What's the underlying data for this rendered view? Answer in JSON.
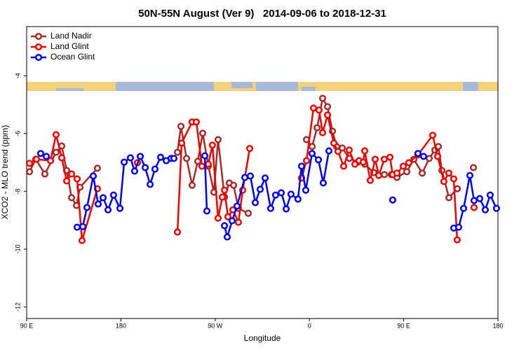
{
  "chart_data": {
    "type": "line",
    "title": "50N-55N August (Ver 9)   2014-09-06 to 2018-12-31",
    "xlabel": "Longitude",
    "ylabel": "XCO2 - MLO trend (ppm)",
    "xlim": [
      90,
      540
    ],
    "ylim": [
      -12.4,
      -2.3
    ],
    "xticks": [
      {
        "value": 90,
        "label": "90 E"
      },
      180,
      {
        "value": 270,
        "label": "90 W"
      },
      {
        "value": 360,
        "label": "0"
      },
      {
        "value": 450,
        "label": "90 E"
      },
      {
        "value": 540,
        "label": "180"
      }
    ],
    "yticks": [
      -4,
      -6,
      -8,
      -10,
      -12
    ],
    "legend": "upper left",
    "series": [
      {
        "name": "Land Nadir",
        "color": "#a52a2a",
        "x": [
          92.7,
          98.7,
          107.4,
          118.1,
          123.5,
          128.2,
          132.9,
          137.6,
          140.9,
          157.6,
          null,
          234,
          237.3,
          242.7,
          248,
          253.4,
          258.1,
          263.5,
          268.8,
          272.8,
          278.9,
          283.5,
          287.6,
          292.2,
          301.6,
          null,
          357.2,
          362.6,
          367.3,
          372.6,
          377.3,
          382,
          386,
          391.4,
          398.1,
          406.1,
          412.8,
          421.5,
          431.6,
          438.2,
          443.6,
          453,
          459.7,
          467.7,
          474.4,
          479.8,
          483.1,
          486.5,
          493.2,
          501.2,
          null,
          516.6
        ],
        "values": [
          -7.32,
          -6.89,
          -7.4,
          -6.65,
          -6.43,
          -7.28,
          -8.22,
          -8.49,
          -7.86,
          -7.2,
          null,
          -6.65,
          -5.75,
          -6.86,
          -7.79,
          -6.96,
          -5.99,
          -7.13,
          -8.03,
          -6.21,
          -8.2,
          -7.71,
          -7.79,
          -8.59,
          -8.76,
          null,
          -6.21,
          -6.45,
          -5.8,
          -4.78,
          -5.07,
          -5.92,
          -6.45,
          -6.5,
          -6.86,
          -6.99,
          -7.06,
          -7.35,
          -7.42,
          -7.42,
          -7.52,
          -7.32,
          -6.89,
          -7.37,
          -6.86,
          -6.57,
          -6.45,
          -7.28,
          -8.22,
          -7.91,
          null,
          -7.18
        ]
      },
      {
        "name": "Land Glint",
        "color": "#f00000",
        "x": [
          92.7,
          99.4,
          112.8,
          118.1,
          123.5,
          128.2,
          132.9,
          138.2,
          142.9,
          157.6,
          null,
          195.8,
          null,
          234,
          238,
          248,
          252,
          257.4,
          263.4,
          267.4,
          272.8,
          276.8,
          278.9,
          282.2,
          286.9,
          292.2,
          296.3,
          303,
          null,
          352.5,
          357.2,
          363.9,
          369.2,
          372.6,
          377.3,
          383.3,
          387.3,
          392.7,
          398,
          403.4,
          407.4,
          411.4,
          412.8,
          418.1,
          422.8,
          426.2,
          431.5,
          436.9,
          439.5,
          443.6,
          449.6,
          454.9,
          463.6,
          477.7,
          482.4,
          488.4,
          493.1,
          497.8,
          501.1,
          null,
          517.2
        ],
        "values": [
          -7.03,
          -6.89,
          -6.94,
          -6.04,
          -6.84,
          -7.64,
          -7.4,
          -7.57,
          -9.7,
          -7.91,
          null,
          -7.01,
          null,
          -9.41,
          -6.33,
          -5.6,
          -5.6,
          -7.13,
          -7.06,
          -6.4,
          -8.93,
          -8.2,
          -7.96,
          -8.88,
          -8.64,
          -9.07,
          -7.96,
          -6.52,
          null,
          -7.54,
          -6.94,
          -5.12,
          -5.19,
          -5.97,
          -5.36,
          -6.33,
          -6.62,
          -7.13,
          -6.57,
          -7.06,
          -6.94,
          -6.99,
          -6.6,
          -7.62,
          -6.89,
          -7.45,
          -6.89,
          -6.82,
          -7.42,
          -7.37,
          -7.13,
          -7.01,
          -6.74,
          -6.06,
          -6.79,
          -7.66,
          -7.37,
          -7.57,
          -9.68,
          null,
          -8.56
        ]
      },
      {
        "name": "Ocean Glint",
        "color": "#0000f0",
        "x": [
          103.4,
          108.8,
          null,
          138.2,
          143.6,
          147.6,
          153.6,
          158.3,
          163,
          167.7,
          173,
          179.1,
          183.1,
          189.1,
          193.1,
          198.5,
          203.2,
          207.9,
          212.5,
          217.9,
          223.3,
          227.9,
          230.6,
          null,
          260.1,
          262.1,
          null,
          278.9,
          281.5,
          286.2,
          290.9,
          298.3,
          303.6,
          308.3,
          313,
          317.7,
          323,
          327.7,
          333.1,
          337.8,
          342.4,
          349.1,
          352.5,
          356.5,
          362.5,
          368.6,
          373.2,
          378.6,
          null,
          439.5,
          null,
          463.6,
          469,
          null,
          497.8,
          502.5,
          507.2,
          513.2,
          517.2,
          522.6,
          527.9,
          532.6,
          538.6
        ],
        "values": [
          -6.69,
          -6.79,
          null,
          -9.24,
          -9.22,
          -8.56,
          -7.47,
          -8.44,
          -8.22,
          -8.64,
          -8.13,
          -8.59,
          -6.99,
          -6.84,
          -7.3,
          -6.79,
          -7.18,
          -7.76,
          -7.23,
          -6.82,
          -6.94,
          -6.86,
          -6.86,
          null,
          -6.77,
          -8.68,
          null,
          -9.19,
          -9.58,
          -9.02,
          -8.51,
          -7.52,
          -7.47,
          -8.39,
          -7.93,
          -7.54,
          -8.59,
          -8.13,
          -8.05,
          -8.61,
          -8.1,
          -8.27,
          -7.13,
          -7.96,
          -6.69,
          -6.91,
          -7.71,
          -6.6,
          null,
          -8.3,
          null,
          -6.69,
          -6.79,
          null,
          -9.27,
          -9.24,
          -8.59,
          -7.45,
          -8.32,
          -8.25,
          -8.64,
          -8.13,
          -8.59
        ]
      }
    ]
  }
}
